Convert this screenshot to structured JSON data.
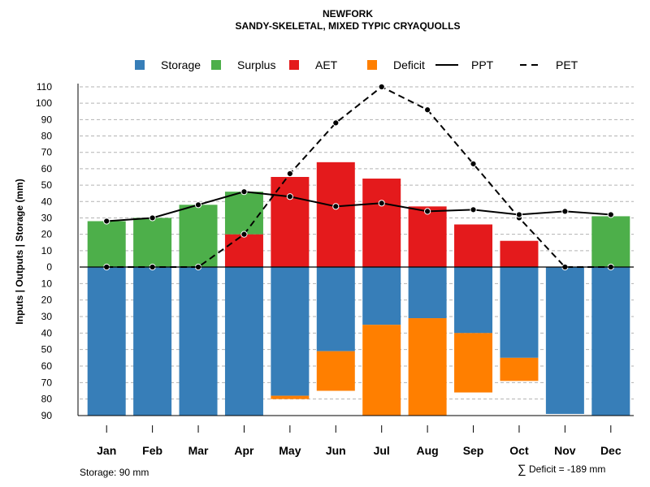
{
  "chart_data": {
    "type": "bar",
    "title": "NEWFORK",
    "subtitle": "SANDY-SKELETAL, MIXED TYPIC CRYAQUOLLS",
    "ylabel": "Inputs | Outputs | Storage    (mm)",
    "xlabel": "",
    "categories": [
      "Jan",
      "Feb",
      "Mar",
      "Apr",
      "May",
      "Jun",
      "Jul",
      "Aug",
      "Sep",
      "Oct",
      "Nov",
      "Dec"
    ],
    "ylim_upper": [
      0,
      110
    ],
    "ylim_lower": [
      0,
      90
    ],
    "upper_ticks": [
      "110",
      "100",
      "90",
      "80",
      "70",
      "60",
      "50",
      "40",
      "30",
      "20",
      "10",
      "0"
    ],
    "lower_ticks": [
      "10",
      "20",
      "30",
      "40",
      "50",
      "60",
      "70",
      "80",
      "90"
    ],
    "legend": {
      "position": "top",
      "items": [
        {
          "label": "Storage",
          "kind": "box",
          "color": "#377EB8"
        },
        {
          "label": "Surplus",
          "kind": "box",
          "color": "#4DAF4A"
        },
        {
          "label": "AET",
          "kind": "box",
          "color": "#E41A1C"
        },
        {
          "label": "Deficit",
          "kind": "box",
          "color": "#FF7F00"
        },
        {
          "label": "PPT",
          "kind": "solid-line",
          "color": "#000000"
        },
        {
          "label": "PET",
          "kind": "dashed-line",
          "color": "#000000"
        }
      ]
    },
    "series": [
      {
        "name": "Surplus",
        "color": "#4DAF4A",
        "values": [
          28,
          30,
          38,
          26,
          0,
          0,
          0,
          0,
          0,
          0,
          0,
          31
        ]
      },
      {
        "name": "AET",
        "color": "#E41A1C",
        "values": [
          0,
          0,
          0,
          20,
          55,
          64,
          54,
          37,
          26,
          16,
          0,
          0
        ]
      },
      {
        "name": "Storage",
        "color": "#377EB8",
        "values": [
          90,
          90,
          90,
          90,
          78,
          51,
          35,
          31,
          40,
          55,
          89,
          90
        ]
      },
      {
        "name": "Deficit",
        "color": "#FF7F00",
        "values": [
          0,
          0,
          0,
          0,
          2,
          24,
          55,
          59,
          36,
          14,
          0,
          0
        ]
      },
      {
        "name": "PPT",
        "color": "#000000",
        "values": [
          28,
          30,
          38,
          46,
          43,
          37,
          39,
          34,
          35,
          32,
          34,
          32
        ]
      },
      {
        "name": "PET",
        "color": "#000000",
        "values": [
          0,
          0,
          0,
          20,
          57,
          88,
          110,
          96,
          63,
          30,
          0,
          0
        ]
      }
    ],
    "grid": true
  },
  "footer": {
    "storage_note": "Storage: 90 mm",
    "deficit_symbol": "∑",
    "deficit_note": "Deficit = -189 mm"
  }
}
